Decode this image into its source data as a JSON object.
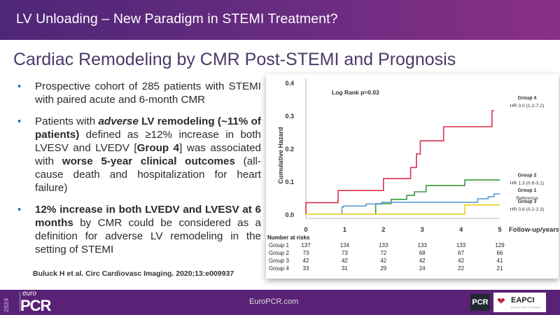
{
  "header": {
    "title": "LV Unloading – New Paradigm in STEMI Treatment?"
  },
  "slide": {
    "subtitle": "Cardiac Remodeling by CMR Post-STEMI and Prognosis",
    "bullets": [
      {
        "html": "Prospective cohort of 285 patients with STEMI with paired acute and 6-month CMR"
      },
      {
        "html": "Patients with <b><i>adverse</i> LV remodeling (~11% of patients)</b> defined as ≥12% increase in both LVESV and LVEDV [<b>Group 4</b>] was associated with <b>worse 5-year clinical outcomes</b> (all-cause death and hospitalization for heart failure)"
      },
      {
        "html": "<b>12% increase in both LVEDV and LVESV at 6 months</b> by CMR could be considered as a definition for adverse LV remodeling in the setting of STEMI"
      }
    ],
    "citation": "Buluck H et al. Circ Cardiovasc Imaging. 2020;13:e009937"
  },
  "chart_data": {
    "type": "line",
    "title": "Log Rank p=0.03",
    "xlabel": "Follow-up/years",
    "ylabel": "Cumulative Hazard",
    "xlim": [
      0,
      5
    ],
    "ylim": [
      0,
      0.4
    ],
    "x_ticks": [
      "0",
      "1",
      "2",
      "3",
      "4",
      "5"
    ],
    "y_ticks": [
      "0.0",
      "0.1",
      "0.2",
      "0.3",
      "0.4"
    ],
    "step": true,
    "series": [
      {
        "name": "Group 4",
        "label": "HR 3.0 (1.2-7.2)",
        "color": "#d5304f",
        "points": [
          [
            0,
            0
          ],
          [
            0,
            0.035
          ],
          [
            0.83,
            0.035
          ],
          [
            0.83,
            0.072
          ],
          [
            2.0,
            0.072
          ],
          [
            2.0,
            0.108
          ],
          [
            2.7,
            0.108
          ],
          [
            2.7,
            0.142
          ],
          [
            2.85,
            0.142
          ],
          [
            2.85,
            0.183
          ],
          [
            2.95,
            0.183
          ],
          [
            2.95,
            0.223
          ],
          [
            3.55,
            0.223
          ],
          [
            3.55,
            0.266
          ],
          [
            4.8,
            0.266
          ],
          [
            4.8,
            0.315
          ],
          [
            4.85,
            0.315
          ]
        ]
      },
      {
        "name": "Group 2",
        "label": "HR 1.3 (0.6-3.1)",
        "color": "#3a9a3a",
        "points": [
          [
            1.8,
            0
          ],
          [
            1.8,
            0.032
          ],
          [
            2.2,
            0.032
          ],
          [
            2.2,
            0.045
          ],
          [
            2.6,
            0.045
          ],
          [
            2.6,
            0.057
          ],
          [
            2.8,
            0.057
          ],
          [
            2.8,
            0.068
          ],
          [
            3.1,
            0.068
          ],
          [
            3.1,
            0.087
          ],
          [
            4.1,
            0.087
          ],
          [
            4.1,
            0.104
          ],
          [
            5,
            0.104
          ]
        ]
      },
      {
        "name": "Group 1",
        "label": "Reference",
        "color": "#5b9bd5",
        "points": [
          [
            0.93,
            0
          ],
          [
            0.93,
            0.021
          ],
          [
            0.97,
            0.021
          ],
          [
            0.97,
            0.025
          ],
          [
            1.55,
            0.025
          ],
          [
            1.55,
            0.031
          ],
          [
            1.95,
            0.031
          ],
          [
            1.95,
            0.036
          ],
          [
            4.43,
            0.036
          ],
          [
            4.43,
            0.047
          ],
          [
            4.7,
            0.047
          ],
          [
            4.7,
            0.053
          ],
          [
            4.85,
            0.053
          ],
          [
            4.85,
            0.062
          ],
          [
            5,
            0.062
          ]
        ]
      },
      {
        "name": "Group 3",
        "label": "HR 0.6 (0.2-2.3)",
        "color": "#e5d21a",
        "points": [
          [
            0,
            0
          ],
          [
            4.1,
            0
          ],
          [
            4.1,
            0.028
          ],
          [
            5,
            0.028
          ]
        ]
      }
    ],
    "risk_table": {
      "title": "Number at risks",
      "rows": [
        {
          "group": "Group 1",
          "values": [
            "137",
            "134",
            "133",
            "133",
            "133",
            "129"
          ]
        },
        {
          "group": "Group 2",
          "values": [
            "73",
            "73",
            "72",
            "68",
            "67",
            "66"
          ]
        },
        {
          "group": "Group 3",
          "values": [
            "42",
            "42",
            "42",
            "42",
            "42",
            "41"
          ]
        },
        {
          "group": "Group 4",
          "values": [
            "33",
            "31",
            "29",
            "24",
            "22",
            "21"
          ]
        }
      ]
    }
  },
  "footer": {
    "year": "2024",
    "logo_small": "euro",
    "logo_main": "PCR",
    "url": "EuroPCR.com",
    "pcr_badge": "PCR",
    "eapci": "EAPCI",
    "eapci_sub": "European Society of Cardiology"
  }
}
